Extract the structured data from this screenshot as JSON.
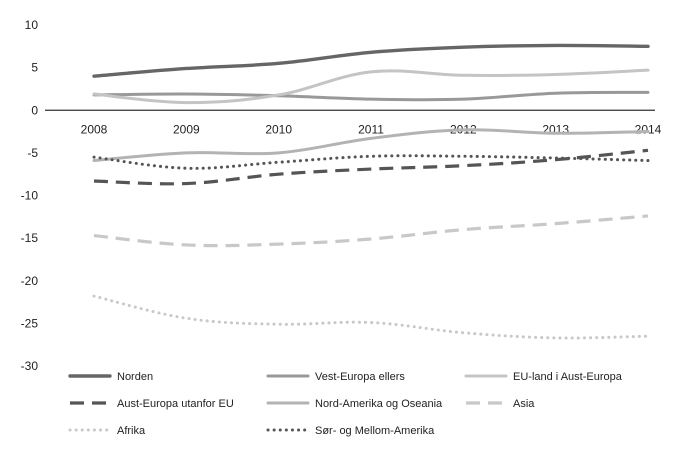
{
  "chart_data": {
    "type": "line",
    "x": [
      "2008",
      "2009",
      "2010",
      "2011",
      "2012",
      "2013",
      "2014"
    ],
    "ylim": [
      -30,
      10
    ],
    "yticks": [
      10,
      5,
      0,
      -5,
      -10,
      -15,
      -20,
      -25,
      -30
    ],
    "grid": false,
    "legend_position": "bottom",
    "series": [
      {
        "name": "Norden",
        "values": [
          4.0,
          4.9,
          5.5,
          6.8,
          7.4,
          7.6,
          7.5
        ],
        "color": "#666666",
        "style": "solid-thick"
      },
      {
        "name": "Vest-Europa ellers",
        "values": [
          1.8,
          1.9,
          1.7,
          1.3,
          1.3,
          2.0,
          2.1
        ],
        "color": "#999999",
        "style": "solid"
      },
      {
        "name": "EU-land i Aust-Europa",
        "values": [
          1.9,
          0.9,
          1.8,
          4.5,
          4.1,
          4.2,
          4.7
        ],
        "color": "#c4c4c4",
        "style": "solid"
      },
      {
        "name": "Aust-Europa utanfor EU",
        "values": [
          -8.3,
          -8.6,
          -7.5,
          -6.9,
          -6.5,
          -5.8,
          -4.7
        ],
        "color": "#555555",
        "style": "dashed"
      },
      {
        "name": "Nord-Amerika og Oseania",
        "values": [
          -5.9,
          -5.0,
          -5.0,
          -3.3,
          -2.3,
          -2.7,
          -2.5
        ],
        "color": "#b3b3b3",
        "style": "solid"
      },
      {
        "name": "Asia",
        "values": [
          -14.7,
          -15.8,
          -15.7,
          -15.1,
          -14.0,
          -13.3,
          -12.4
        ],
        "color": "#c8c8c8",
        "style": "dashed"
      },
      {
        "name": "Afrika",
        "values": [
          -21.8,
          -24.4,
          -25.1,
          -24.9,
          -26.1,
          -26.7,
          -26.5
        ],
        "color": "#c8c8c8",
        "style": "dotted"
      },
      {
        "name": "Sør- og Mellom-Amerika",
        "values": [
          -5.5,
          -6.8,
          -6.1,
          -5.4,
          -5.4,
          -5.6,
          -5.9
        ],
        "color": "#555555",
        "style": "dotted"
      }
    ]
  }
}
